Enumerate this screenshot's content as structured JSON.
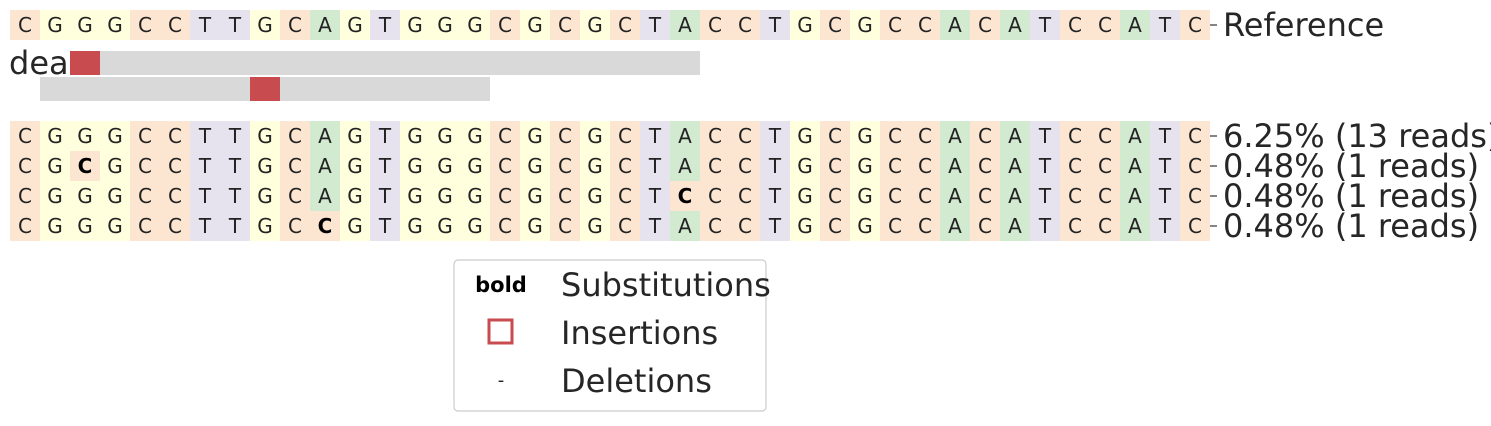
{
  "chart_data": {
    "type": "table",
    "title": "",
    "base_colors": {
      "A": "#d2ead0",
      "C": "#fce6d2",
      "G": "#ffffdd",
      "T": "#e6e2ee"
    },
    "insertion_color": "#c84b4f",
    "bar_color": "#d9d9d9",
    "reference": {
      "label": "Reference",
      "sequence": "CGGGCCTTGCAGTGGGCGCGCTACCTGCGCCACATCCATC"
    },
    "guide_label": "dear",
    "guide_rows": [
      {
        "bar_start": 2,
        "bar_end": 23,
        "insertion_at": 2
      },
      {
        "bar_start": 1,
        "bar_end": 16,
        "insertion_at": 8
      }
    ],
    "alleles": [
      {
        "sequence": "CGGGCCTTGCAGTGGGCGCGCTACCTGCGCCACATCCATC",
        "bold": [],
        "label": "6.25% (13 reads)"
      },
      {
        "sequence": "CGCGCCTTGCAGTGGGCGCGCTACCTGCGCCACATCCATC",
        "bold": [
          2
        ],
        "label": "0.48% (1 reads)"
      },
      {
        "sequence": "CGGGCCTTGCAGTGGGCGCGCTCCCTGCGCCACATCCATC",
        "bold": [
          22
        ],
        "label": "0.48% (1 reads)"
      },
      {
        "sequence": "CGGGCCTTGCCGTGGGCGCGCTACCTGCGCCACATCCATC",
        "bold": [
          10
        ],
        "label": "0.48% (1 reads)"
      }
    ],
    "legend": {
      "items": [
        {
          "symbol": "bold",
          "label": "Substitutions"
        },
        {
          "symbol": "box",
          "label": "Insertions"
        },
        {
          "symbol": "-",
          "label": "Deletions"
        }
      ]
    }
  }
}
